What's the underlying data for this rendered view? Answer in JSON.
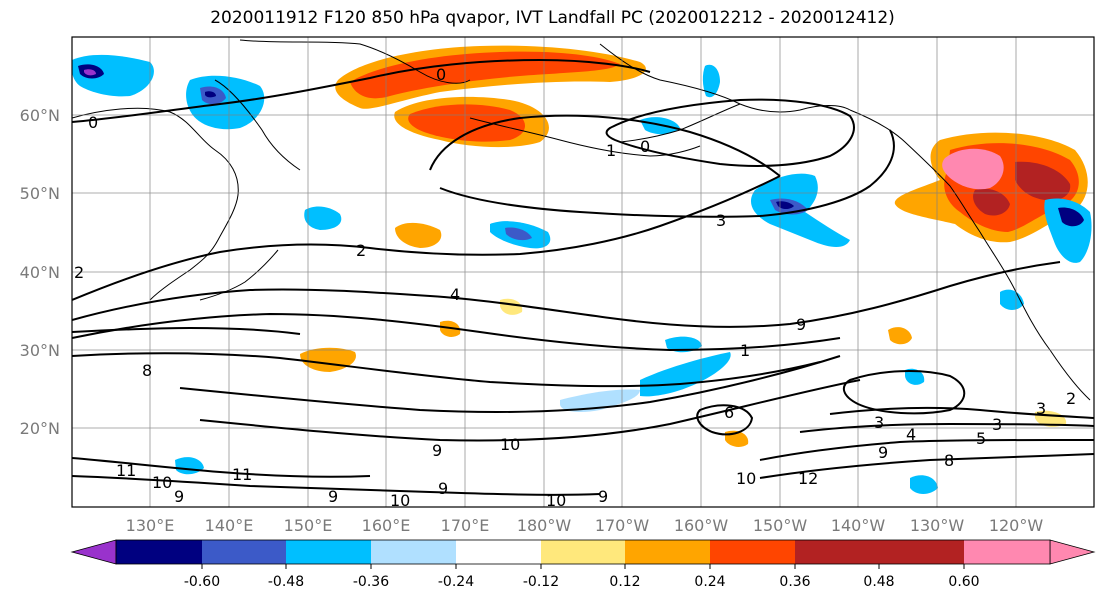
{
  "title": "2020011912 F120 850 hPa qvapor, IVT Landfall PC (2020012212 - 2020012412)",
  "lat_labels": [
    "60°N",
    "50°N",
    "40°N",
    "30°N",
    "20°N"
  ],
  "lon_labels": [
    "130°E",
    "140°E",
    "150°E",
    "160°E",
    "170°E",
    "180°W",
    "170°W",
    "160°W",
    "150°W",
    "140°W",
    "130°W",
    "120°W"
  ],
  "colorbar": {
    "colors": [
      "#9932cc",
      "#000080",
      "#3c5ac8",
      "#00bfff",
      "#b0e0ff",
      "#ffffff",
      "#ffe87c",
      "#ffa500",
      "#ff4500",
      "#b22222",
      "#ff88b0"
    ],
    "tick_labels": [
      "-0.60",
      "-0.48",
      "-0.36",
      "-0.24",
      "-0.12",
      "0.12",
      "0.24",
      "0.36",
      "0.48",
      "0.60"
    ]
  },
  "contour_labels": [
    "0",
    "0",
    "0",
    "1",
    "3",
    "2",
    "4",
    "9",
    "1",
    "8",
    "6",
    "9",
    "10",
    "11",
    "11",
    "10",
    "9",
    "9",
    "10",
    "9",
    "10",
    "9",
    "10",
    "12",
    "8",
    "9",
    "5",
    "4",
    "3",
    "3",
    "3",
    "2",
    "2"
  ]
}
